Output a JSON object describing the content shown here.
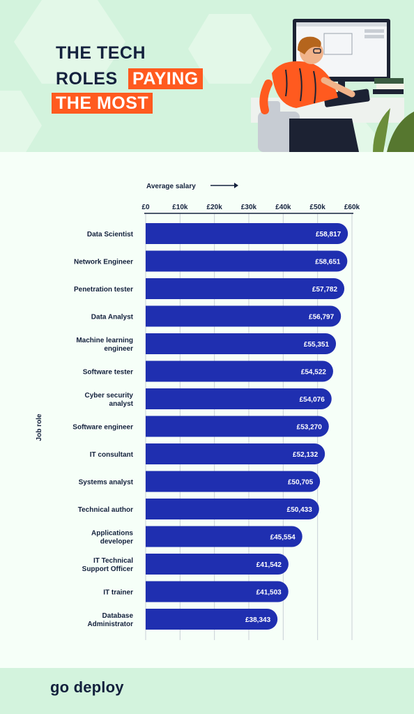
{
  "header": {
    "title_line1": "THE TECH",
    "title_line2a": "ROLES",
    "title_line2b": "PAYING",
    "title_line3": "THE MOST"
  },
  "footer": {
    "logo": "go deploy"
  },
  "colors": {
    "bar": "#1f2fb0",
    "accent": "#ff5a1f",
    "text": "#14213d",
    "background": "#d3f3dd",
    "panel": "#f6fff8"
  },
  "chart_data": {
    "type": "bar",
    "orientation": "horizontal",
    "xlabel": "Average salary",
    "ylabel": "Job role",
    "xlim": [
      0,
      60000
    ],
    "xticks": [
      0,
      10000,
      20000,
      30000,
      40000,
      50000,
      60000
    ],
    "xtick_labels": [
      "£0",
      "£10k",
      "£20k",
      "£30k",
      "£40k",
      "£50k",
      "£60k"
    ],
    "grid": true,
    "categories": [
      "Data Scientist",
      "Network Engineer",
      "Penetration tester",
      "Data Analyst",
      "Machine learning engineer",
      "Software tester",
      "Cyber security analyst",
      "Software engineer",
      "IT consultant",
      "Systems analyst",
      "Technical author",
      "Applications developer",
      "IT Technical Support Officer",
      "IT trainer",
      "Database Administrator"
    ],
    "category_lines": [
      [
        "Data Scientist"
      ],
      [
        "Network Engineer"
      ],
      [
        "Penetration tester"
      ],
      [
        "Data Analyst"
      ],
      [
        "Machine learning",
        "engineer"
      ],
      [
        "Software tester"
      ],
      [
        "Cyber security",
        "analyst"
      ],
      [
        "Software engineer"
      ],
      [
        "IT consultant"
      ],
      [
        "Systems analyst"
      ],
      [
        "Technical author"
      ],
      [
        "Applications",
        "developer"
      ],
      [
        "IT Technical",
        "Support Officer"
      ],
      [
        "IT trainer"
      ],
      [
        "Database",
        "Administrator"
      ]
    ],
    "values": [
      58817,
      58651,
      57782,
      56797,
      55351,
      54522,
      54076,
      53270,
      52132,
      50705,
      50433,
      45554,
      41542,
      41503,
      38343
    ],
    "value_labels": [
      "£58,817",
      "£58,651",
      "£57,782",
      "£56,797",
      "£55,351",
      "£54,522",
      "£54,076",
      "£53,270",
      "£52,132",
      "£50,705",
      "£50,433",
      "£45,554",
      "£41,542",
      "£41,503",
      "£38,343"
    ]
  }
}
